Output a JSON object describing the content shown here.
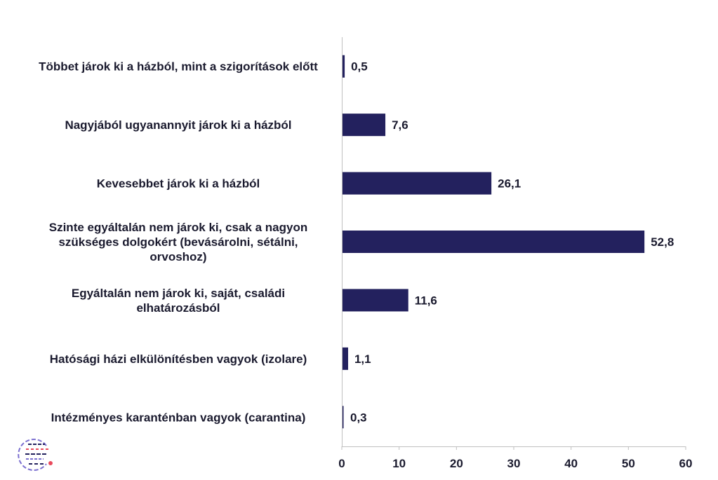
{
  "chart_data": {
    "type": "bar",
    "orientation": "horizontal",
    "categories": [
      [
        "Többet járok ki a házból, mint a szigorítások előtt"
      ],
      [
        "Nagyjából ugyanannyit járok ki a házból"
      ],
      [
        "Kevesebbet járok ki a házból"
      ],
      [
        "Szinte egyáltalán nem járok ki, csak a nagyon",
        "szükséges dolgokért (bevásárolni, sétálni,",
        "orvoshoz)"
      ],
      [
        "Egyáltalán nem járok ki, saját, családi",
        "elhatározásból"
      ],
      [
        "Hatósági házi elkülönítésben vagyok (izolare)"
      ],
      [
        "Intézményes karanténban vagyok (carantina)"
      ]
    ],
    "values": [
      0.5,
      7.6,
      26.1,
      52.8,
      11.6,
      1.1,
      0.3
    ],
    "value_labels": [
      "0,5",
      "7,6",
      "26,1",
      "52,8",
      "11,6",
      "1,1",
      "0,3"
    ],
    "xlim": [
      0,
      60
    ],
    "xticks": [
      0,
      10,
      20,
      30,
      40,
      50,
      60
    ],
    "title": "",
    "xlabel": "",
    "ylabel": "",
    "grid": false,
    "bar_color": "#23215e"
  },
  "logo": {
    "name": "logo-mark",
    "colors": [
      "#e94a5c",
      "#23215e",
      "#7b6fd0"
    ]
  }
}
